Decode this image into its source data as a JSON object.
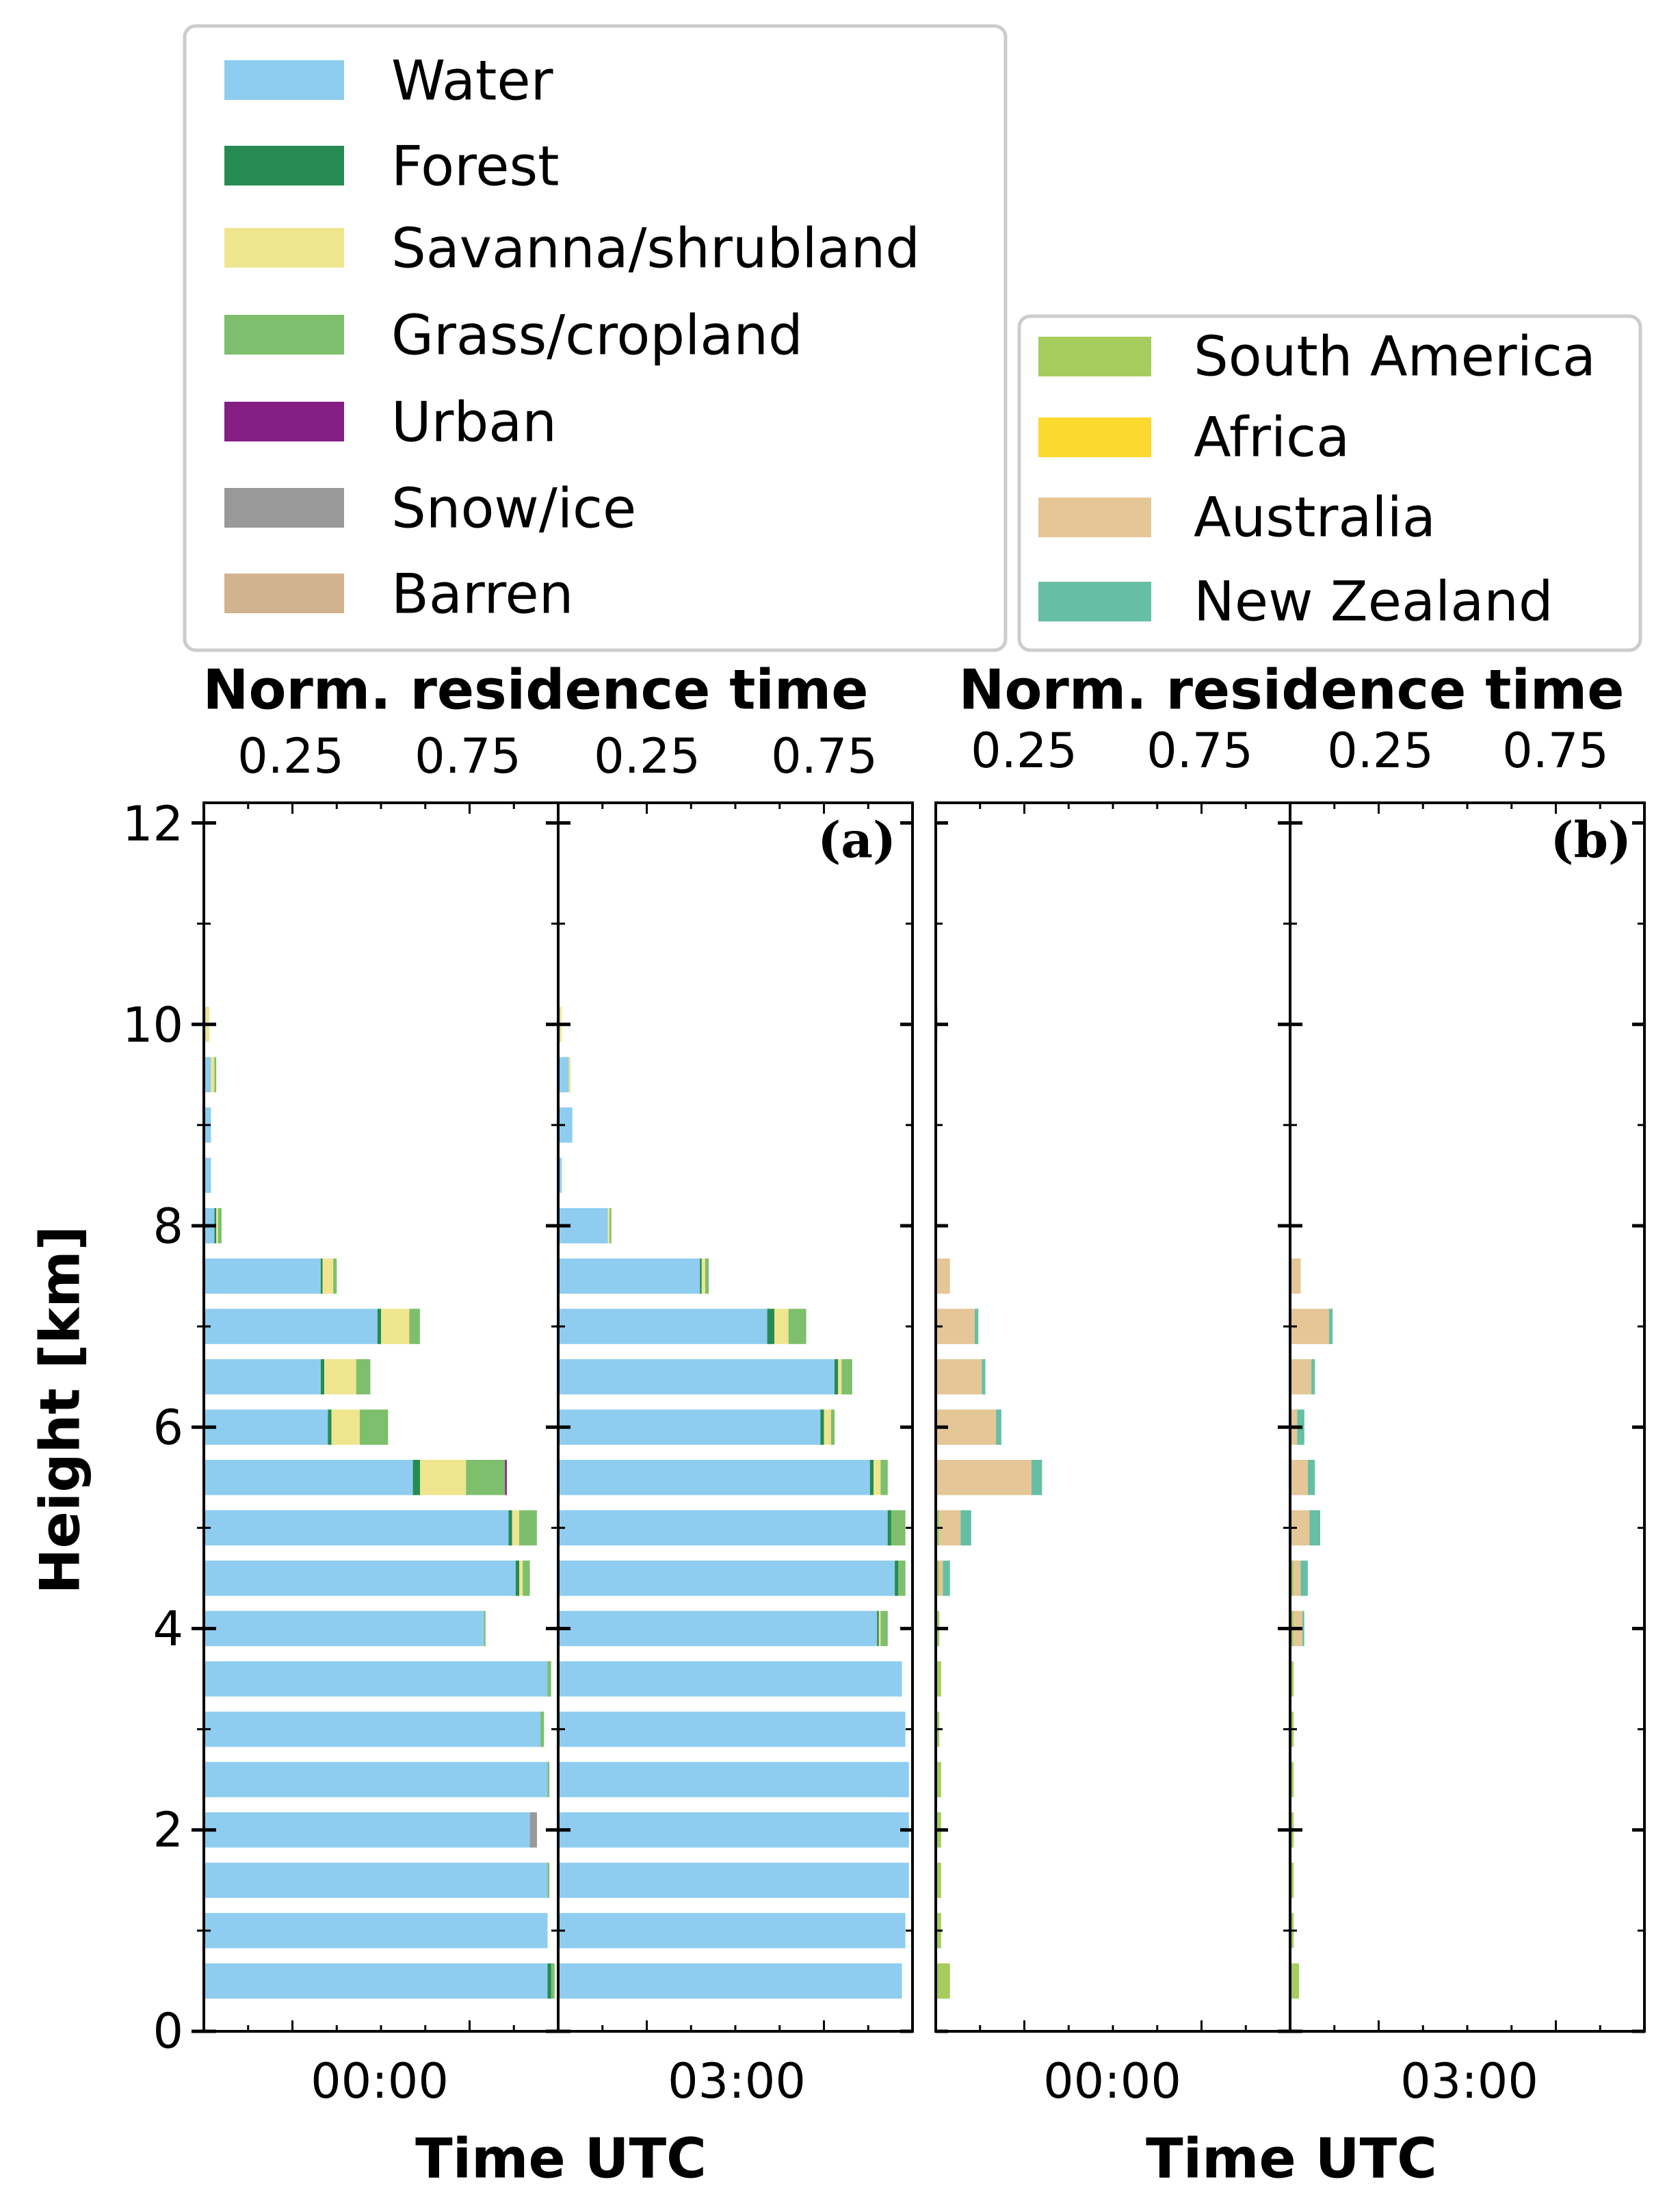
{
  "chart_data": {
    "type": "bar",
    "orientation": "horizontal",
    "stacked": true,
    "height_bins_km": [
      0.5,
      1.0,
      1.5,
      2.0,
      2.5,
      3.0,
      3.5,
      4.0,
      4.5,
      5.0,
      5.5,
      6.0,
      6.5,
      7.0,
      7.5,
      8.0,
      8.5,
      9.0,
      9.5,
      10.0
    ],
    "y_axis": {
      "label": "Height [km]",
      "range": [
        0,
        12.2
      ],
      "ticks": [
        "0",
        "2",
        "4",
        "6",
        "8",
        "10",
        "12"
      ]
    },
    "x_top_axis": {
      "label": "Norm. residence time",
      "range": [
        0,
        1
      ],
      "ticks": [
        "0.25",
        "0.75"
      ]
    },
    "x_bottom_axis": {
      "label": "Time UTC"
    },
    "panels": [
      {
        "label": "(a)",
        "categories": [
          "Water",
          "Forest",
          "Savanna/shrubland",
          "Grass/cropland",
          "Urban",
          "Snow/ice",
          "Barren"
        ],
        "colors": [
          "#8ecdf0",
          "#258b52",
          "#efe58e",
          "#7dbf6c",
          "#851f85",
          "#999999",
          "#d2b38f"
        ],
        "subplots": [
          {
            "time": "00:00",
            "series": [
              {
                "name": "Water",
                "values": [
                  0.97,
                  0.97,
                  0.97,
                  0.92,
                  0.97,
                  0.95,
                  0.97,
                  0.79,
                  0.88,
                  0.86,
                  0.59,
                  0.35,
                  0.33,
                  0.49,
                  0.33,
                  0.03,
                  0.02,
                  0.02,
                  0.02,
                  0.005
                ]
              },
              {
                "name": "Forest",
                "values": [
                  0.01,
                  0.0,
                  0.0,
                  0.0,
                  0.0,
                  0.0,
                  0.0,
                  0.0,
                  0.01,
                  0.01,
                  0.02,
                  0.01,
                  0.01,
                  0.01,
                  0.005,
                  0.005,
                  0.0,
                  0.0,
                  0.0,
                  0.0
                ]
              },
              {
                "name": "Savanna/shrubland",
                "values": [
                  0.0,
                  0.0,
                  0.0,
                  0.0,
                  0.0,
                  0.0,
                  0.0,
                  0.0,
                  0.01,
                  0.02,
                  0.13,
                  0.08,
                  0.09,
                  0.08,
                  0.03,
                  0.005,
                  0.0,
                  0.0,
                  0.01,
                  0.01
                ]
              },
              {
                "name": "Grass/cropland",
                "values": [
                  0.01,
                  0.0,
                  0.005,
                  0.0,
                  0.005,
                  0.01,
                  0.01,
                  0.005,
                  0.02,
                  0.05,
                  0.11,
                  0.08,
                  0.04,
                  0.03,
                  0.01,
                  0.01,
                  0.0,
                  0.0,
                  0.005,
                  0.0
                ]
              },
              {
                "name": "Urban",
                "values": [
                  0.0,
                  0.0,
                  0.0,
                  0.0,
                  0.0,
                  0.0,
                  0.0,
                  0.0,
                  0.0,
                  0.0,
                  0.005,
                  0.0,
                  0.0,
                  0.0,
                  0.0,
                  0.0,
                  0.0,
                  0.0,
                  0.0,
                  0.0
                ]
              },
              {
                "name": "Snow/ice",
                "values": [
                  0.0,
                  0.0,
                  0.0,
                  0.02,
                  0.0,
                  0.0,
                  0.0,
                  0.0,
                  0.0,
                  0.0,
                  0.0,
                  0.0,
                  0.0,
                  0.0,
                  0.0,
                  0.0,
                  0.0,
                  0.0,
                  0.0,
                  0.0
                ]
              },
              {
                "name": "Barren",
                "values": [
                  0.0,
                  0.0,
                  0.0,
                  0.0,
                  0.0,
                  0.0,
                  0.0,
                  0.0,
                  0.0,
                  0.0,
                  0.0,
                  0.0,
                  0.0,
                  0.0,
                  0.0,
                  0.0,
                  0.0,
                  0.0,
                  0.0,
                  0.0
                ]
              }
            ]
          },
          {
            "time": "03:00",
            "series": [
              {
                "name": "Water",
                "values": [
                  0.97,
                  0.98,
                  0.99,
                  0.99,
                  0.99,
                  0.98,
                  0.97,
                  0.9,
                  0.95,
                  0.93,
                  0.88,
                  0.74,
                  0.78,
                  0.59,
                  0.4,
                  0.14,
                  0.01,
                  0.04,
                  0.03,
                  0.005
                ]
              },
              {
                "name": "Forest",
                "values": [
                  0.0,
                  0.0,
                  0.0,
                  0.0,
                  0.0,
                  0.0,
                  0.0,
                  0.005,
                  0.01,
                  0.01,
                  0.01,
                  0.01,
                  0.01,
                  0.02,
                  0.005,
                  0.0,
                  0.0,
                  0.0,
                  0.0,
                  0.0
                ]
              },
              {
                "name": "Savanna/shrubland",
                "values": [
                  0.0,
                  0.0,
                  0.0,
                  0.0,
                  0.0,
                  0.0,
                  0.0,
                  0.005,
                  0.0,
                  0.0,
                  0.02,
                  0.02,
                  0.01,
                  0.04,
                  0.01,
                  0.005,
                  0.0,
                  0.0,
                  0.005,
                  0.005
                ]
              },
              {
                "name": "Grass/cropland",
                "values": [
                  0.0,
                  0.0,
                  0.0,
                  0.0,
                  0.0,
                  0.0,
                  0.0,
                  0.02,
                  0.02,
                  0.04,
                  0.02,
                  0.01,
                  0.03,
                  0.05,
                  0.01,
                  0.005,
                  0.0,
                  0.0,
                  0.0,
                  0.0
                ]
              },
              {
                "name": "Urban",
                "values": [
                  0.0,
                  0.0,
                  0.0,
                  0.0,
                  0.0,
                  0.0,
                  0.0,
                  0.0,
                  0.0,
                  0.0,
                  0.0,
                  0.0,
                  0.0,
                  0.0,
                  0.0,
                  0.0,
                  0.0,
                  0.0,
                  0.0,
                  0.0
                ]
              },
              {
                "name": "Snow/ice",
                "values": [
                  0.0,
                  0.0,
                  0.0,
                  0.0,
                  0.0,
                  0.0,
                  0.0,
                  0.0,
                  0.0,
                  0.0,
                  0.0,
                  0.0,
                  0.0,
                  0.0,
                  0.0,
                  0.0,
                  0.0,
                  0.0,
                  0.0,
                  0.0
                ]
              },
              {
                "name": "Barren",
                "values": [
                  0.0,
                  0.0,
                  0.0,
                  0.0,
                  0.0,
                  0.0,
                  0.0,
                  0.0,
                  0.0,
                  0.0,
                  0.0,
                  0.0,
                  0.0,
                  0.0,
                  0.0,
                  0.0,
                  0.0,
                  0.0,
                  0.0,
                  0.0
                ]
              }
            ]
          }
        ]
      },
      {
        "label": "(b)",
        "categories": [
          "South America",
          "Africa",
          "Australia",
          "New Zealand"
        ],
        "colors": [
          "#a5cc5c",
          "#fcd92f",
          "#e5c696",
          "#66bfa4"
        ],
        "subplots": [
          {
            "time": "00:00",
            "series": [
              {
                "name": "South America",
                "values": [
                  0.04,
                  0.015,
                  0.015,
                  0.015,
                  0.015,
                  0.01,
                  0.015,
                  0.01,
                  0.01,
                  0.01,
                  0.0,
                  0.0,
                  0.0,
                  0.0,
                  0.0,
                  0.0,
                  0.0,
                  0.0,
                  0.0,
                  0.0
                ]
              },
              {
                "name": "Africa",
                "values": [
                  0.0,
                  0.0,
                  0.0,
                  0.0,
                  0.0,
                  0.0,
                  0.0,
                  0.0,
                  0.0,
                  0.0,
                  0.0,
                  0.0,
                  0.0,
                  0.0,
                  0.0,
                  0.0,
                  0.0,
                  0.0,
                  0.0,
                  0.0
                ]
              },
              {
                "name": "Australia",
                "values": [
                  0.0,
                  0.0,
                  0.0,
                  0.0,
                  0.0,
                  0.0,
                  0.0,
                  0.0,
                  0.01,
                  0.06,
                  0.27,
                  0.17,
                  0.13,
                  0.11,
                  0.04,
                  0.0,
                  0.0,
                  0.0,
                  0.0,
                  0.005
                ]
              },
              {
                "name": "New Zealand",
                "values": [
                  0.0,
                  0.0,
                  0.0,
                  0.0,
                  0.0,
                  0.0,
                  0.0,
                  0.0,
                  0.02,
                  0.03,
                  0.03,
                  0.015,
                  0.01,
                  0.01,
                  0.0,
                  0.0,
                  0.0,
                  0.0,
                  0.0,
                  0.0
                ]
              }
            ]
          },
          {
            "time": "03:00",
            "series": [
              {
                "name": "South America",
                "values": [
                  0.025,
                  0.01,
                  0.01,
                  0.01,
                  0.01,
                  0.01,
                  0.01,
                  0.01,
                  0.01,
                  0.005,
                  0.0,
                  0.0,
                  0.0,
                  0.0,
                  0.0,
                  0.0,
                  0.0,
                  0.0,
                  0.0,
                  0.0
                ]
              },
              {
                "name": "Africa",
                "values": [
                  0.0,
                  0.0,
                  0.0,
                  0.0,
                  0.0,
                  0.0,
                  0.0,
                  0.0,
                  0.0,
                  0.0,
                  0.0,
                  0.0,
                  0.0,
                  0.0,
                  0.0,
                  0.0,
                  0.0,
                  0.0,
                  0.0,
                  0.0
                ]
              },
              {
                "name": "Australia",
                "values": [
                  0.0,
                  0.0,
                  0.0,
                  0.0,
                  0.0,
                  0.0,
                  0.0,
                  0.025,
                  0.02,
                  0.05,
                  0.05,
                  0.02,
                  0.06,
                  0.11,
                  0.03,
                  0.0,
                  0.0,
                  0.0,
                  0.0,
                  0.0
                ]
              },
              {
                "name": "New Zealand",
                "values": [
                  0.0,
                  0.0,
                  0.0,
                  0.0,
                  0.0,
                  0.0,
                  0.0,
                  0.005,
                  0.02,
                  0.03,
                  0.02,
                  0.02,
                  0.01,
                  0.01,
                  0.0,
                  0.0,
                  0.0,
                  0.0,
                  0.0,
                  0.0
                ]
              }
            ]
          }
        ]
      }
    ]
  }
}
